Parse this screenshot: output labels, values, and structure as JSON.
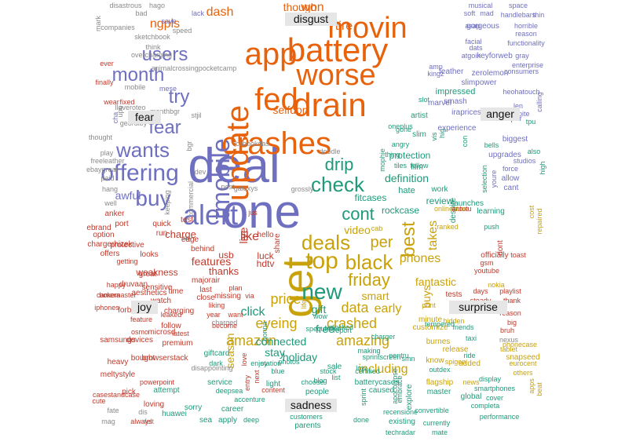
{
  "colors": {
    "disgust": "#c0392b",
    "fear": "#6f6fc0",
    "anger": "#e8620c",
    "surprise": "#d4a017",
    "joy": "#c9a20a",
    "sadness": "#1e9a7a",
    "trust": "#2f9a6a",
    "anticipation": "#8a8a8a",
    "label_bg": "#e6e6e6"
  },
  "sector_labels": [
    "disgust",
    "fear",
    "anger",
    "joy",
    "surprise",
    "sadness"
  ],
  "words": [
    {
      "t": "deal",
      "c": "fear"
    },
    {
      "t": "one",
      "c": "fear"
    },
    {
      "t": "get",
      "c": "joy"
    },
    {
      "t": "update",
      "c": "anger"
    },
    {
      "t": "fed",
      "c": "anger"
    },
    {
      "t": "drain",
      "c": "anger"
    },
    {
      "t": "crashes",
      "c": "anger"
    },
    {
      "t": "worse",
      "c": "anger"
    },
    {
      "t": "app",
      "c": "anger"
    },
    {
      "t": "battery",
      "c": "anger"
    },
    {
      "t": "movin",
      "c": "anger"
    },
    {
      "t": "alert",
      "c": "fear"
    },
    {
      "t": "offering",
      "c": "fear"
    },
    {
      "t": "tmobile",
      "c": "fear"
    },
    {
      "t": "top",
      "c": "joy"
    },
    {
      "t": "check",
      "c": "sadness"
    },
    {
      "t": "new",
      "c": "sadness"
    },
    {
      "t": "buy",
      "c": "fear"
    },
    {
      "t": "wants",
      "c": "fear"
    },
    {
      "t": "fear",
      "c": "fear"
    },
    {
      "t": "deals",
      "c": "joy"
    },
    {
      "t": "black",
      "c": "joy"
    },
    {
      "t": "month",
      "c": "fear"
    },
    {
      "t": "users",
      "c": "fear"
    },
    {
      "t": "try",
      "c": "fear"
    },
    {
      "t": "friday",
      "c": "joy"
    },
    {
      "t": "cont",
      "c": "sadness"
    },
    {
      "t": "drip",
      "c": "sadness"
    },
    {
      "t": "crashed",
      "c": "joy"
    },
    {
      "t": "amazing",
      "c": "joy"
    },
    {
      "t": "amazon",
      "c": "joy"
    },
    {
      "t": "data",
      "c": "joy"
    },
    {
      "t": "price",
      "c": "joy"
    },
    {
      "t": "eyeing",
      "c": "joy"
    },
    {
      "t": "best",
      "c": "joy"
    },
    {
      "t": "per",
      "c": "joy"
    },
    {
      "t": "selfdon",
      "c": "anger"
    },
    {
      "t": "dash",
      "c": "anger"
    },
    {
      "t": "won",
      "c": "anger"
    },
    {
      "t": "tire",
      "c": "anger"
    },
    {
      "t": "ngpls",
      "c": "anger"
    },
    {
      "t": "though",
      "c": "anger"
    },
    {
      "t": "phones",
      "c": "joy"
    },
    {
      "t": "fantastic",
      "c": "joy"
    },
    {
      "t": "connected",
      "c": "sadness"
    },
    {
      "t": "including",
      "c": "joy"
    },
    {
      "t": "holiday",
      "c": "sadness"
    },
    {
      "t": "video",
      "c": "joy"
    },
    {
      "t": "smart",
      "c": "joy"
    },
    {
      "t": "free",
      "c": "sadness"
    },
    {
      "t": "gift",
      "c": "sadness"
    },
    {
      "t": "like",
      "c": "disgust"
    },
    {
      "t": "click",
      "c": "sadness"
    },
    {
      "t": "stay",
      "c": "sadness"
    },
    {
      "t": "early",
      "c": "joy"
    },
    {
      "t": "definition",
      "c": "sadness"
    },
    {
      "t": "review",
      "c": "sadness"
    },
    {
      "t": "rockcase",
      "c": "sadness"
    },
    {
      "t": "fitcases",
      "c": "sadness"
    },
    {
      "t": "season",
      "c": "joy"
    },
    {
      "t": "takes",
      "c": "joy"
    },
    {
      "t": "buys",
      "c": "joy"
    },
    {
      "t": "protection",
      "c": "sadness"
    },
    {
      "t": "features",
      "c": "disgust"
    },
    {
      "t": "thanks",
      "c": "disgust"
    },
    {
      "t": "charge",
      "c": "disgust"
    },
    {
      "t": "usb",
      "c": "disgust"
    },
    {
      "t": "live",
      "c": "disgust"
    },
    {
      "t": "luck",
      "c": "disgust"
    },
    {
      "t": "hdtv",
      "c": "disgust"
    },
    {
      "t": "weakness",
      "c": "disgust"
    },
    {
      "t": "sensitive",
      "c": "disgust"
    },
    {
      "t": "charging",
      "c": "disgust"
    },
    {
      "t": "watch",
      "c": "disgust"
    },
    {
      "t": "premium",
      "c": "disgust"
    },
    {
      "t": "forbes",
      "c": "disgust"
    },
    {
      "t": "missing",
      "c": "disgust"
    },
    {
      "t": "awful",
      "c": "fear"
    },
    {
      "t": "hate",
      "c": "sadness"
    },
    {
      "t": "work",
      "c": "sadness"
    },
    {
      "t": "launches",
      "c": "sadness"
    },
    {
      "t": "despite",
      "c": "sadness"
    },
    {
      "t": "film",
      "c": "sadness"
    },
    {
      "t": "fellow",
      "c": "sadness"
    },
    {
      "t": "tiles",
      "c": "sadness"
    },
    {
      "t": "slim",
      "c": "sadness"
    },
    {
      "t": "artist",
      "c": "sadness"
    },
    {
      "t": "impressed",
      "c": "sadness"
    },
    {
      "t": "smash",
      "c": "fear"
    },
    {
      "t": "iraprices",
      "c": "fear"
    },
    {
      "t": "slimpower",
      "c": "fear"
    },
    {
      "t": "zerolemon",
      "c": "fear"
    },
    {
      "t": "experience",
      "c": "fear"
    },
    {
      "t": "marvel",
      "c": "fear"
    },
    {
      "t": "leather",
      "c": "fear"
    },
    {
      "t": "musical",
      "c": "fear"
    },
    {
      "t": "soft",
      "c": "fear"
    },
    {
      "t": "mad",
      "c": "fear"
    },
    {
      "t": "space",
      "c": "fear"
    },
    {
      "t": "handlebars",
      "c": "fear"
    },
    {
      "t": "thin",
      "c": "fear"
    },
    {
      "t": "gorgeous",
      "c": "fear"
    },
    {
      "t": "horrible",
      "c": "fear"
    },
    {
      "t": "reason",
      "c": "fear"
    },
    {
      "t": "functionality",
      "c": "fear"
    },
    {
      "t": "atgoin",
      "c": "fear"
    },
    {
      "t": "keyforweb",
      "c": "fear"
    },
    {
      "t": "gray",
      "c": "fear"
    },
    {
      "t": "consumers",
      "c": "fear"
    },
    {
      "t": "enterprise",
      "c": "fear"
    },
    {
      "t": "heohatouch",
      "c": "fear"
    },
    {
      "t": "calling",
      "c": "fear"
    },
    {
      "t": "bumper",
      "c": "fear"
    },
    {
      "t": "biggest",
      "c": "fear"
    },
    {
      "t": "upgrades",
      "c": "fear"
    },
    {
      "t": "studios",
      "c": "fear"
    },
    {
      "t": "force",
      "c": "fear"
    },
    {
      "t": "allow",
      "c": "fear"
    },
    {
      "t": "cant",
      "c": "fear"
    },
    {
      "t": "youre",
      "c": "fear"
    },
    {
      "t": "selection",
      "c": "sadness"
    },
    {
      "t": "learning",
      "c": "sadness"
    },
    {
      "t": "push",
      "c": "sadness"
    },
    {
      "t": "dont",
      "c": "disgust"
    },
    {
      "t": "officially",
      "c": "disgust"
    },
    {
      "t": "toast",
      "c": "disgust"
    },
    {
      "t": "gsm",
      "c": "disgust"
    },
    {
      "t": "youtube",
      "c": "disgust"
    },
    {
      "t": "days",
      "c": "disgust"
    },
    {
      "t": "playlist",
      "c": "disgust"
    },
    {
      "t": "steady",
      "c": "disgust"
    },
    {
      "t": "thank",
      "c": "disgust"
    },
    {
      "t": "tests",
      "c": "disgust"
    },
    {
      "t": "minute",
      "c": "joy"
    },
    {
      "t": "customize",
      "c": "joy"
    },
    {
      "t": "hidden",
      "c": "joy"
    },
    {
      "t": "burnes",
      "c": "joy"
    },
    {
      "t": "release",
      "c": "joy"
    },
    {
      "t": "know",
      "c": "joy"
    },
    {
      "t": "spigen",
      "c": "joy"
    },
    {
      "t": "added",
      "c": "joy"
    },
    {
      "t": "snapseed",
      "c": "joy"
    },
    {
      "t": "eurocent",
      "c": "joy"
    },
    {
      "t": "others",
      "c": "joy"
    },
    {
      "t": "flagship",
      "c": "joy"
    },
    {
      "t": "master",
      "c": "sadness"
    },
    {
      "t": "global",
      "c": "sadness"
    },
    {
      "t": "cover",
      "c": "sadness"
    },
    {
      "t": "completa",
      "c": "sadness"
    },
    {
      "t": "performance",
      "c": "sadness"
    },
    {
      "t": "smartphones",
      "c": "sadness"
    },
    {
      "t": "display",
      "c": "sadness"
    },
    {
      "t": "caused",
      "c": "sadness"
    },
    {
      "t": "explore",
      "c": "sadness"
    },
    {
      "t": "batterycases",
      "c": "sadness"
    },
    {
      "t": "convertible",
      "c": "sadness"
    },
    {
      "t": "recensione",
      "c": "sadness"
    },
    {
      "t": "existing",
      "c": "sadness"
    },
    {
      "t": "currently",
      "c": "sadness"
    },
    {
      "t": "techradar",
      "c": "sadness"
    },
    {
      "t": "mate",
      "c": "sadness"
    },
    {
      "t": "done",
      "c": "sadness"
    },
    {
      "t": "parents",
      "c": "sadness"
    },
    {
      "t": "customers",
      "c": "sadness"
    },
    {
      "t": "people",
      "c": "sadness"
    },
    {
      "t": "choose",
      "c": "sadness"
    },
    {
      "t": "light",
      "c": "sadness"
    },
    {
      "t": "stock",
      "c": "sadness"
    },
    {
      "t": "sale",
      "c": "sadness"
    },
    {
      "t": "low",
      "c": "sadness"
    },
    {
      "t": "sprintscreen",
      "c": "sadness"
    },
    {
      "t": "pentru",
      "c": "sadness"
    },
    {
      "t": "making",
      "c": "sadness"
    },
    {
      "t": "smn",
      "c": "sadness"
    },
    {
      "t": "blog",
      "c": "sadness"
    },
    {
      "t": "list",
      "c": "sadness"
    },
    {
      "t": "apply",
      "c": "sadness"
    },
    {
      "t": "deep",
      "c": "sadness"
    },
    {
      "t": "career",
      "c": "sadness"
    },
    {
      "t": "sea",
      "c": "sadness"
    },
    {
      "t": "accenture",
      "c": "sadness"
    },
    {
      "t": "deepsea",
      "c": "sadness"
    },
    {
      "t": "service",
      "c": "sadness"
    },
    {
      "t": "giftcard",
      "c": "sadness"
    },
    {
      "t": "dark",
      "c": "sadness"
    },
    {
      "t": "station",
      "c": "sadness"
    },
    {
      "t": "photos",
      "c": "sadness"
    },
    {
      "t": "enjoy",
      "c": "sadness"
    },
    {
      "t": "gonna",
      "c": "sadness"
    },
    {
      "t": "sorry",
      "c": "sadness"
    },
    {
      "t": "huawei",
      "c": "sadness"
    },
    {
      "t": "attempt",
      "c": "sadness"
    },
    {
      "t": "loving",
      "c": "disgust"
    },
    {
      "t": "pick",
      "c": "disgust"
    },
    {
      "t": "powerpoint",
      "c": "disgust"
    },
    {
      "t": "meltystyle",
      "c": "disgust"
    },
    {
      "t": "heavy",
      "c": "disgust"
    },
    {
      "t": "bought",
      "c": "disgust"
    },
    {
      "t": "browserstack",
      "c": "disgust"
    },
    {
      "t": "samsungs",
      "c": "disgust"
    },
    {
      "t": "devices",
      "c": "disgust"
    },
    {
      "t": "microsd",
      "c": "disgust"
    },
    {
      "t": "osmo",
      "c": "disgust"
    },
    {
      "t": "follow",
      "c": "disgust"
    },
    {
      "t": "latest",
      "c": "disgust"
    },
    {
      "t": "leaked",
      "c": "disgust"
    },
    {
      "t": "feature",
      "c": "disgust"
    },
    {
      "t": "aesthetics",
      "c": "disgust"
    },
    {
      "t": "time",
      "c": "disgust"
    },
    {
      "t": "druvaan",
      "c": "disgust"
    },
    {
      "t": "camera",
      "c": "disgust"
    },
    {
      "t": "iphones",
      "c": "disgust"
    },
    {
      "t": "bokemaster",
      "c": "disgust"
    },
    {
      "t": "happy",
      "c": "disgust"
    },
    {
      "t": "option",
      "c": "disgust"
    },
    {
      "t": "ebrand",
      "c": "disgust"
    },
    {
      "t": "anker",
      "c": "disgust"
    },
    {
      "t": "chargerhizek",
      "c": "disgust"
    },
    {
      "t": "offers",
      "c": "disgust"
    },
    {
      "t": "getting",
      "c": "disgust"
    },
    {
      "t": "protective",
      "c": "disgust"
    },
    {
      "t": "looks",
      "c": "disgust"
    },
    {
      "t": "behind",
      "c": "disgust"
    },
    {
      "t": "edge",
      "c": "disgust"
    },
    {
      "t": "test",
      "c": "disgust"
    },
    {
      "t": "run",
      "c": "disgust"
    },
    {
      "t": "quick",
      "c": "disgust"
    },
    {
      "t": "port",
      "c": "disgust"
    },
    {
      "t": "great",
      "c": "disgust"
    },
    {
      "t": "majorair",
      "c": "disgust"
    },
    {
      "t": "last",
      "c": "disgust"
    },
    {
      "t": "close",
      "c": "disgust"
    },
    {
      "t": "ever",
      "c": "disgust"
    },
    {
      "t": "finally",
      "c": "disgust"
    },
    {
      "t": "wear",
      "c": "disgust"
    },
    {
      "t": "fixed",
      "c": "disgust"
    },
    {
      "t": "mobile",
      "c": "anticipation"
    },
    {
      "t": "thought",
      "c": "anticipation"
    },
    {
      "t": "play",
      "c": "anticipation"
    },
    {
      "t": "freeleather",
      "c": "anticipation"
    },
    {
      "t": "ebaygreat",
      "c": "anticipation"
    },
    {
      "t": "paid",
      "c": "anticipation"
    },
    {
      "t": "hang",
      "c": "anticipation"
    },
    {
      "t": "well",
      "c": "anticipation"
    },
    {
      "t": "disastrous",
      "c": "anticipation"
    },
    {
      "t": "hago",
      "c": "anticipation"
    },
    {
      "t": "bad",
      "c": "anticipation"
    },
    {
      "t": "companies",
      "c": "anticipation"
    },
    {
      "t": "speed",
      "c": "anticipation"
    },
    {
      "t": "sketchbook",
      "c": "anticipation"
    },
    {
      "t": "think",
      "c": "anticipation"
    },
    {
      "t": "overcharging",
      "c": "anticipation"
    },
    {
      "t": "mark",
      "c": "anticipation"
    },
    {
      "t": "animalcrossingpocketcamp",
      "c": "anticipation"
    },
    {
      "t": "geordiby",
      "c": "anticipation"
    },
    {
      "t": "monthbgr",
      "c": "anticipation"
    },
    {
      "t": "galaxys",
      "c": "anticipation"
    },
    {
      "t": "post",
      "c": "anticipation"
    },
    {
      "t": "grossly",
      "c": "anticipation"
    },
    {
      "t": "doodle",
      "c": "anticipation"
    },
    {
      "t": "bookdas",
      "c": "anticipation"
    },
    {
      "t": "ich",
      "c": "anticipation"
    },
    {
      "t": "dev",
      "c": "anticipation"
    },
    {
      "t": "stjil",
      "c": "anticipation"
    },
    {
      "t": "fate",
      "c": "anticipation"
    },
    {
      "t": "dis",
      "c": "anticipation"
    },
    {
      "t": "felt",
      "c": "anticipation"
    },
    {
      "t": "mag",
      "c": "anticipation"
    },
    {
      "t": "always",
      "c": "disgust"
    },
    {
      "t": "cute",
      "c": "disgust"
    },
    {
      "t": "casestandcase",
      "c": "disgust"
    },
    {
      "t": "liking",
      "c": "disgust"
    },
    {
      "t": "bruh",
      "c": "disgust"
    },
    {
      "t": "big",
      "c": "disgust"
    },
    {
      "t": "reason",
      "c": "disgust"
    },
    {
      "t": "nexus",
      "c": "anticipation"
    },
    {
      "t": "phonecase",
      "c": "joy"
    },
    {
      "t": "tablet",
      "c": "joy"
    },
    {
      "t": "apps",
      "c": "joy"
    },
    {
      "t": "beat",
      "c": "joy"
    },
    {
      "t": "nokia",
      "c": "joy"
    },
    {
      "t": "cost",
      "c": "joy"
    },
    {
      "t": "repaired",
      "c": "joy"
    },
    {
      "t": "onlinestore",
      "c": "joy"
    },
    {
      "t": "antutu",
      "c": "disgust"
    },
    {
      "t": "oneplus",
      "c": "sadness"
    },
    {
      "t": "gone",
      "c": "sadness"
    },
    {
      "t": "vis",
      "c": "sadness"
    },
    {
      "t": "hig",
      "c": "sadness"
    },
    {
      "t": "con",
      "c": "sadness"
    },
    {
      "t": "bells",
      "c": "sadness"
    },
    {
      "t": "angry",
      "c": "sadness"
    },
    {
      "t": "thing",
      "c": "sadness"
    },
    {
      "t": "mophie",
      "c": "sadness"
    },
    {
      "t": "slot",
      "c": "sadness"
    },
    {
      "t": "tpu",
      "c": "sadness"
    },
    {
      "t": "also",
      "c": "sadness"
    },
    {
      "t": "high",
      "c": "sadness"
    },
    {
      "t": "len",
      "c": "fear"
    },
    {
      "t": "spite",
      "c": "fear"
    },
    {
      "t": "amp",
      "c": "fear"
    },
    {
      "t": "kingz",
      "c": "fear"
    },
    {
      "t": "facial",
      "c": "fear"
    },
    {
      "t": "asap",
      "c": "fear"
    },
    {
      "t": "dats",
      "c": "fear"
    },
    {
      "t": "save",
      "c": "fear"
    },
    {
      "t": "lack",
      "c": "fear"
    },
    {
      "t": "mese",
      "c": "fear"
    },
    {
      "t": "cha",
      "c": "fear"
    },
    {
      "t": "upo",
      "c": "anticipation"
    },
    {
      "t": "llaveroteo",
      "c": "anticipation"
    },
    {
      "t": "bgr",
      "c": "anticipation"
    },
    {
      "t": "commercial",
      "c": "anticipation"
    },
    {
      "t": "keeping",
      "c": "anticipation"
    },
    {
      "t": "say",
      "c": "anticipation"
    },
    {
      "t": "disappointing",
      "c": "anticipation"
    },
    {
      "t": "charged",
      "c": "anticipation"
    },
    {
      "t": "year",
      "c": "disgust"
    },
    {
      "t": "become",
      "c": "disgust"
    },
    {
      "t": "want",
      "c": "disgust"
    },
    {
      "t": "via",
      "c": "disgust"
    },
    {
      "t": "jus",
      "c": "disgust"
    },
    {
      "t": "plan",
      "c": "disgust"
    },
    {
      "t": "hello",
      "c": "disgust"
    },
    {
      "t": "share",
      "c": "disgust"
    },
    {
      "t": "content",
      "c": "disgust"
    },
    {
      "t": "next",
      "c": "disgust"
    },
    {
      "t": "entry",
      "c": "disgust"
    },
    {
      "t": "love",
      "c": "disgust"
    },
    {
      "t": "blue",
      "c": "sadness"
    },
    {
      "t": "sprint",
      "c": "sadness"
    },
    {
      "t": "apocolypse",
      "c": "sadness"
    },
    {
      "t": "embrace",
      "c": "sadness"
    },
    {
      "t": "charger",
      "c": "sadness"
    },
    {
      "t": "speculative",
      "c": "sadness"
    },
    {
      "t": "unlocked",
      "c": "sadness"
    },
    {
      "t": "certified",
      "c": "sadness"
    },
    {
      "t": "tempered",
      "c": "sadness"
    },
    {
      "t": "friends",
      "c": "sadness"
    },
    {
      "t": "taxi",
      "c": "sadness"
    },
    {
      "t": "ride",
      "c": "sadness"
    },
    {
      "t": "outdex",
      "c": "sadness"
    },
    {
      "t": "news",
      "c": "joy"
    },
    {
      "t": "life",
      "c": "joy"
    },
    {
      "t": "cab",
      "c": "joy"
    },
    {
      "t": "ranked",
      "c": "joy"
    },
    {
      "t": "print",
      "c": "joy"
    },
    {
      "t": "wow",
      "c": "sadness"
    },
    {
      "t": "report",
      "c": "sadness"
    },
    {
      "t": "sun",
      "c": "joy"
    },
    {
      "t": "tech",
      "c": "joy"
    },
    {
      "t": "tips",
      "c": "joy"
    },
    {
      "t": "press",
      "c": "joy"
    },
    {
      "t": "brought",
      "c": "joy"
    },
    {
      "t": "announce",
      "c": "joy"
    }
  ]
}
